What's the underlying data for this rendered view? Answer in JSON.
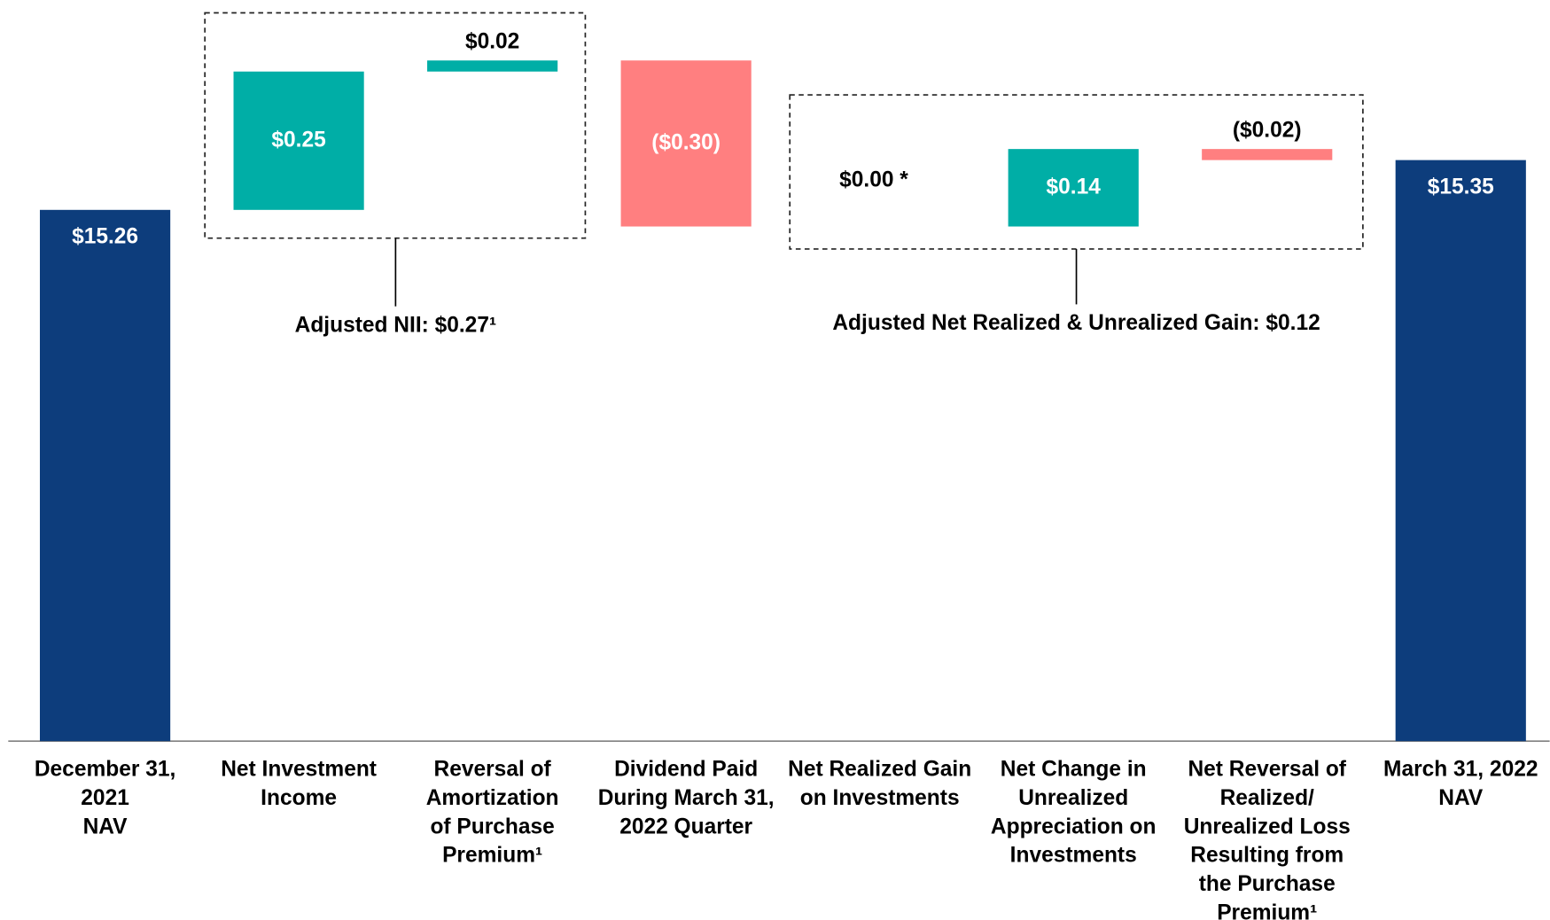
{
  "chart_data": {
    "type": "waterfall",
    "categories": [
      "December 31,\n2021\nNAV",
      "Net Investment\nIncome",
      "Reversal of\nAmortization\nof Purchase\nPremium¹",
      "Dividend Paid\nDuring March 31,\n2022 Quarter",
      "Net Realized Gain\non Investments",
      "Net Change in\nUnrealized\nAppreciation on\nInvestments",
      "Net Reversal of\nRealized/\nUnrealized Loss\nResulting from\nthe Purchase\nPremium¹",
      "March 31, 2022\nNAV"
    ],
    "values": [
      15.26,
      0.25,
      0.02,
      -0.3,
      0,
      0.14,
      -0.02,
      15.35
    ],
    "value_labels": [
      "$15.26",
      "$0.25",
      "$0.02",
      "($0.30)",
      "$0.00 *",
      "$0.14",
      "($0.02)",
      "$15.35"
    ],
    "totals": [
      true,
      false,
      false,
      false,
      false,
      false,
      false,
      true
    ],
    "colors": {
      "total": "#0d3d7c",
      "increase": "#00aea6",
      "decrease": "#ff7f80"
    },
    "ylim": [
      14.3,
      15.6
    ],
    "annotations": [
      "Adjusted NII: $0.27¹",
      "Adjusted Net Realized & Unrealized Gain: $0.12"
    ]
  }
}
